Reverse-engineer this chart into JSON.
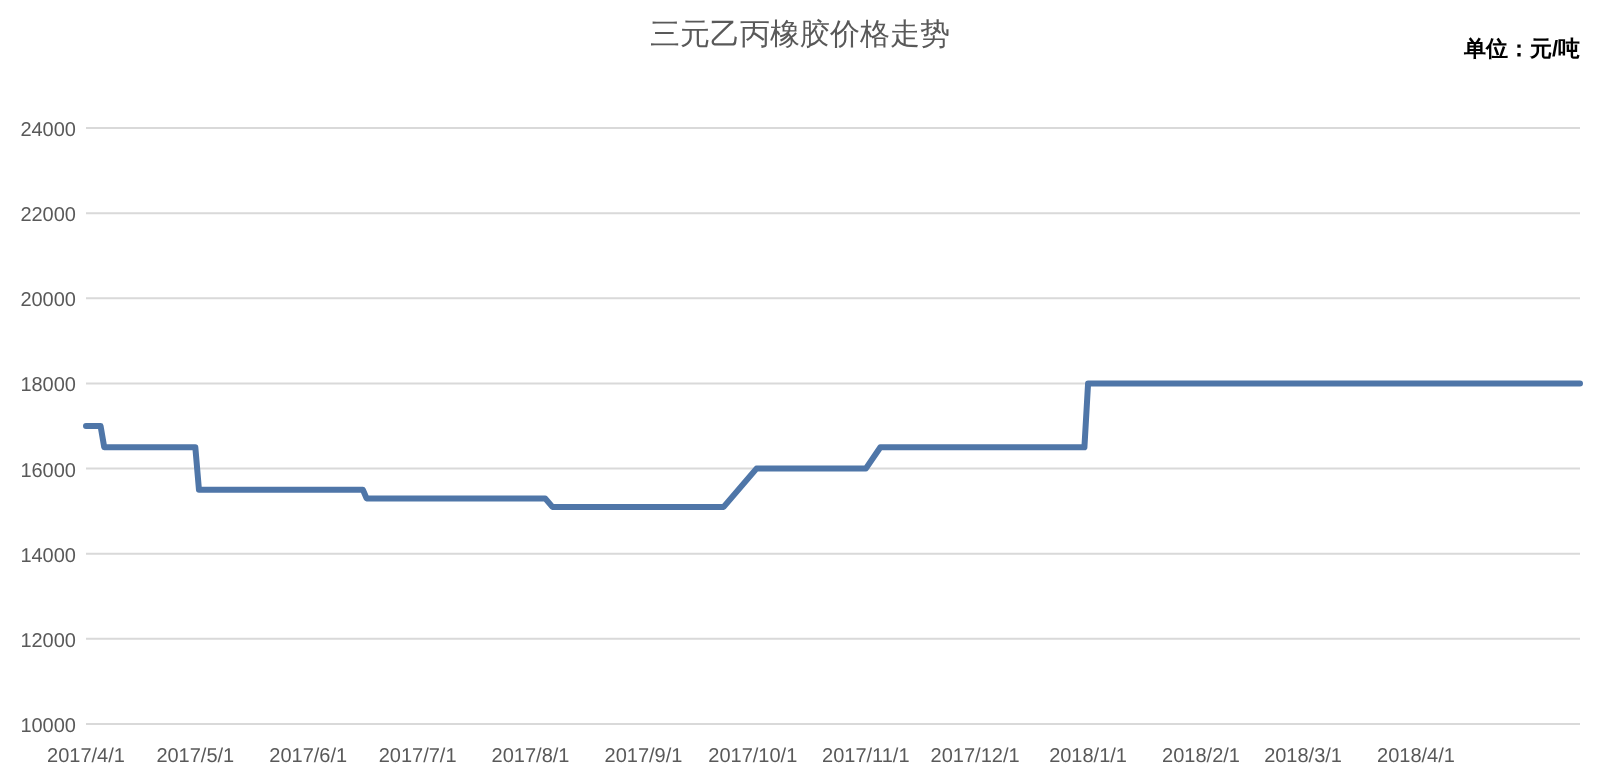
{
  "chart_data": {
    "type": "line",
    "title": "三元乙丙橡胶价格走势",
    "annotations": [
      "单位：元/吨"
    ],
    "x": [
      "2017-04-01",
      "2017-04-05",
      "2017-04-06",
      "2017-05-01",
      "2017-05-02",
      "2017-06-16",
      "2017-06-17",
      "2017-08-05",
      "2017-08-07",
      "2017-09-23",
      "2017-10-02",
      "2017-11-01",
      "2017-11-05",
      "2017-12-31",
      "2018-01-01",
      "2018-05-16"
    ],
    "values": [
      17000,
      17000,
      16500,
      16500,
      15500,
      15500,
      15300,
      15300,
      15100,
      15100,
      16000,
      16000,
      16500,
      16500,
      18000,
      18000
    ],
    "color": "#4f76a8",
    "xlim": [
      "2017-04-01",
      "2018-05-16"
    ],
    "xticks": [
      {
        "value": "2017-04-01",
        "label": "2017/4/1"
      },
      {
        "value": "2017-05-01",
        "label": "2017/5/1"
      },
      {
        "value": "2017-06-01",
        "label": "2017/6/1"
      },
      {
        "value": "2017-07-01",
        "label": "2017/7/1"
      },
      {
        "value": "2017-08-01",
        "label": "2017/8/1"
      },
      {
        "value": "2017-09-01",
        "label": "2017/9/1"
      },
      {
        "value": "2017-10-01",
        "label": "2017/10/1"
      },
      {
        "value": "2017-11-01",
        "label": "2017/11/1"
      },
      {
        "value": "2017-12-01",
        "label": "2017/12/1"
      },
      {
        "value": "2018-01-01",
        "label": "2018/1/1"
      },
      {
        "value": "2018-02-01",
        "label": "2018/2/1"
      },
      {
        "value": "2018-03-01",
        "label": "2018/3/1"
      },
      {
        "value": "2018-04-01",
        "label": "2018/4/1"
      }
    ],
    "ylim": [
      10000,
      24000
    ],
    "yticks": [
      10000,
      12000,
      14000,
      16000,
      18000,
      20000,
      22000,
      24000
    ],
    "grid": "y"
  }
}
